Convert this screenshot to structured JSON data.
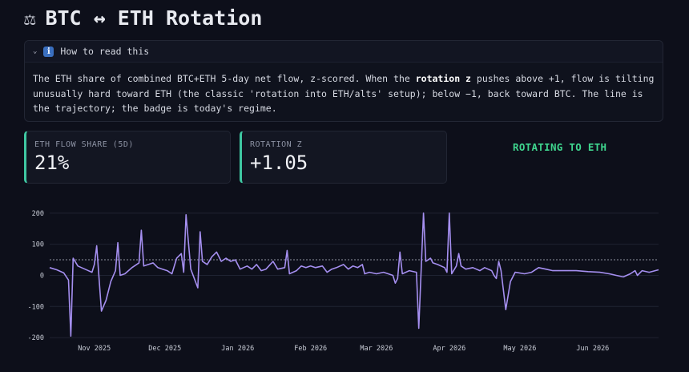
{
  "header": {
    "icon": "scale-icon",
    "title": "BTC ↔ ETH Rotation"
  },
  "expander": {
    "label": "How to read this",
    "text_1": "The ETH share of combined BTC+ETH 5-day net flow, z-scored. When the ",
    "text_bold": "rotation z",
    "text_2": " pushes above +1, flow is tilting unusually hard toward ETH (the classic 'rotation into ETH/alts' setup); below −1, back toward BTC. The line is the trajectory; the badge is today's regime."
  },
  "metrics": [
    {
      "label": "ETH FLOW SHARE (5D)",
      "value": "21%"
    },
    {
      "label": "ROTATION Z",
      "value": "+1.05"
    }
  ],
  "regime_badge": {
    "text": "ROTATING TO ETH",
    "color": "#3fd58e"
  },
  "chart_data": {
    "type": "line",
    "x_start": "2025-10-13",
    "x_end": "2026-06-29",
    "xticks": [
      {
        "date": "2025-11-01",
        "label": "Nov 2025"
      },
      {
        "date": "2025-12-01",
        "label": "Dec 2025"
      },
      {
        "date": "2026-01-01",
        "label": "Jan 2026"
      },
      {
        "date": "2026-02-01",
        "label": "Feb 2026"
      },
      {
        "date": "2026-03-01",
        "label": "Mar 2026"
      },
      {
        "date": "2026-04-01",
        "label": "Apr 2026"
      },
      {
        "date": "2026-05-01",
        "label": "May 2026"
      },
      {
        "date": "2026-06-01",
        "label": "Jun 2026"
      }
    ],
    "yticks": [
      200,
      100,
      0,
      -100,
      -200
    ],
    "ylim": [
      -210,
      215
    ],
    "reference_line": {
      "y": 50,
      "style": "dotted"
    },
    "grid": "horizontal",
    "series": [
      {
        "color": "#a58ff0",
        "points": [
          [
            "2025-10-13",
            25
          ],
          [
            "2025-10-16",
            18
          ],
          [
            "2025-10-19",
            8
          ],
          [
            "2025-10-21",
            -15
          ],
          [
            "2025-10-22",
            -195
          ],
          [
            "2025-10-23",
            55
          ],
          [
            "2025-10-25",
            30
          ],
          [
            "2025-10-28",
            20
          ],
          [
            "2025-10-31",
            10
          ],
          [
            "2025-11-01",
            35
          ],
          [
            "2025-11-02",
            95
          ],
          [
            "2025-11-04",
            -115
          ],
          [
            "2025-11-06",
            -80
          ],
          [
            "2025-11-08",
            -20
          ],
          [
            "2025-11-10",
            15
          ],
          [
            "2025-11-11",
            105
          ],
          [
            "2025-11-12",
            0
          ],
          [
            "2025-11-14",
            5
          ],
          [
            "2025-11-17",
            25
          ],
          [
            "2025-11-20",
            40
          ],
          [
            "2025-11-21",
            145
          ],
          [
            "2025-11-22",
            30
          ],
          [
            "2025-11-24",
            35
          ],
          [
            "2025-11-26",
            40
          ],
          [
            "2025-11-28",
            25
          ],
          [
            "2025-11-30",
            20
          ],
          [
            "2025-12-02",
            15
          ],
          [
            "2025-12-04",
            5
          ],
          [
            "2025-12-06",
            55
          ],
          [
            "2025-12-08",
            70
          ],
          [
            "2025-12-09",
            10
          ],
          [
            "2025-12-10",
            195
          ],
          [
            "2025-12-12",
            20
          ],
          [
            "2025-12-15",
            -40
          ],
          [
            "2025-12-16",
            140
          ],
          [
            "2025-12-17",
            45
          ],
          [
            "2025-12-19",
            35
          ],
          [
            "2025-12-21",
            60
          ],
          [
            "2025-12-23",
            75
          ],
          [
            "2025-12-25",
            45
          ],
          [
            "2025-12-27",
            55
          ],
          [
            "2025-12-29",
            45
          ],
          [
            "2025-12-31",
            50
          ],
          [
            "2026-01-02",
            20
          ],
          [
            "2026-01-05",
            30
          ],
          [
            "2026-01-07",
            20
          ],
          [
            "2026-01-09",
            35
          ],
          [
            "2026-01-11",
            15
          ],
          [
            "2026-01-13",
            20
          ],
          [
            "2026-01-16",
            45
          ],
          [
            "2026-01-18",
            20
          ],
          [
            "2026-01-21",
            25
          ],
          [
            "2026-01-22",
            80
          ],
          [
            "2026-01-23",
            5
          ],
          [
            "2026-01-26",
            15
          ],
          [
            "2026-01-28",
            30
          ],
          [
            "2026-01-30",
            25
          ],
          [
            "2026-02-01",
            30
          ],
          [
            "2026-02-03",
            25
          ],
          [
            "2026-02-06",
            30
          ],
          [
            "2026-02-08",
            10
          ],
          [
            "2026-02-10",
            20
          ],
          [
            "2026-02-12",
            25
          ],
          [
            "2026-02-15",
            35
          ],
          [
            "2026-02-17",
            20
          ],
          [
            "2026-02-19",
            30
          ],
          [
            "2026-02-21",
            25
          ],
          [
            "2026-02-23",
            35
          ],
          [
            "2026-02-24",
            5
          ],
          [
            "2026-02-26",
            10
          ],
          [
            "2026-03-01",
            5
          ],
          [
            "2026-03-04",
            10
          ],
          [
            "2026-03-06",
            5
          ],
          [
            "2026-03-08",
            0
          ],
          [
            "2026-03-09",
            -25
          ],
          [
            "2026-03-10",
            -10
          ],
          [
            "2026-03-11",
            75
          ],
          [
            "2026-03-12",
            5
          ],
          [
            "2026-03-15",
            15
          ],
          [
            "2026-03-18",
            10
          ],
          [
            "2026-03-19",
            -170
          ],
          [
            "2026-03-21",
            200
          ],
          [
            "2026-03-22",
            45
          ],
          [
            "2026-03-24",
            55
          ],
          [
            "2026-03-25",
            40
          ],
          [
            "2026-03-27",
            35
          ],
          [
            "2026-03-30",
            25
          ],
          [
            "2026-03-31",
            10
          ],
          [
            "2026-04-01",
            200
          ],
          [
            "2026-04-02",
            5
          ],
          [
            "2026-04-04",
            30
          ],
          [
            "2026-04-05",
            70
          ],
          [
            "2026-04-06",
            30
          ],
          [
            "2026-04-08",
            20
          ],
          [
            "2026-04-11",
            25
          ],
          [
            "2026-04-14",
            15
          ],
          [
            "2026-04-16",
            25
          ],
          [
            "2026-04-19",
            15
          ],
          [
            "2026-04-20",
            0
          ],
          [
            "2026-04-21",
            -10
          ],
          [
            "2026-04-22",
            45
          ],
          [
            "2026-04-23",
            15
          ],
          [
            "2026-04-25",
            -110
          ],
          [
            "2026-04-27",
            -20
          ],
          [
            "2026-04-29",
            10
          ],
          [
            "2026-05-03",
            5
          ],
          [
            "2026-05-06",
            10
          ],
          [
            "2026-05-09",
            25
          ],
          [
            "2026-05-12",
            20
          ],
          [
            "2026-05-15",
            15
          ],
          [
            "2026-05-20",
            15
          ],
          [
            "2026-05-25",
            15
          ],
          [
            "2026-05-30",
            12
          ],
          [
            "2026-06-04",
            10
          ],
          [
            "2026-06-08",
            5
          ],
          [
            "2026-06-11",
            0
          ],
          [
            "2026-06-14",
            -5
          ],
          [
            "2026-06-17",
            5
          ],
          [
            "2026-06-19",
            15
          ],
          [
            "2026-06-20",
            0
          ],
          [
            "2026-06-22",
            15
          ],
          [
            "2026-06-25",
            10
          ],
          [
            "2026-06-29",
            18
          ]
        ]
      }
    ]
  }
}
